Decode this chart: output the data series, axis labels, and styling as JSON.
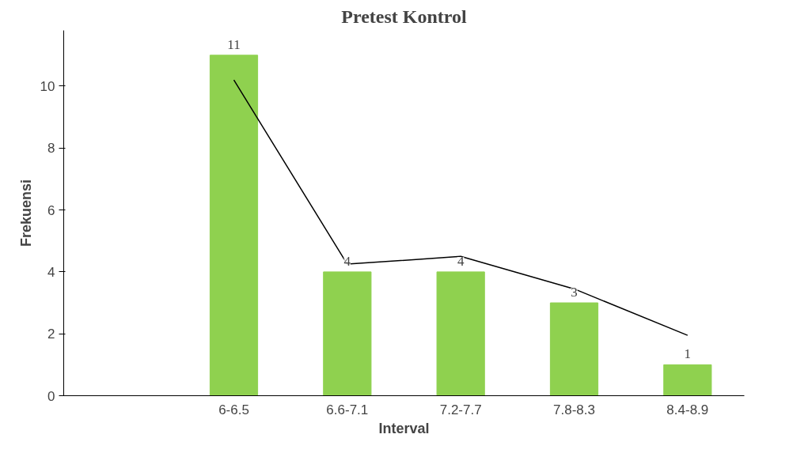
{
  "chart_data": {
    "type": "bar",
    "title": "Pretest Kontrol",
    "xlabel": "Interval",
    "ylabel": "Frekuensi",
    "categories": [
      null,
      "6-6.5",
      "6.6-7.1",
      "7.2-7.7",
      "7.8-8.3",
      "8.4-8.9"
    ],
    "series": [
      {
        "color": "#8fd14f",
        "values": [
          null,
          11,
          4,
          4,
          3,
          1
        ],
        "value_labels": [
          null,
          "11",
          "4",
          "4",
          "3",
          "1"
        ]
      },
      {
        "type": "line",
        "color": "#000000",
        "values": [
          null,
          10.2,
          4.25,
          4.5,
          3.45,
          1.95
        ]
      }
    ],
    "ylim": [
      0,
      11.8
    ],
    "yticks": [
      0,
      2,
      4,
      6,
      8,
      10
    ],
    "grid": false
  }
}
